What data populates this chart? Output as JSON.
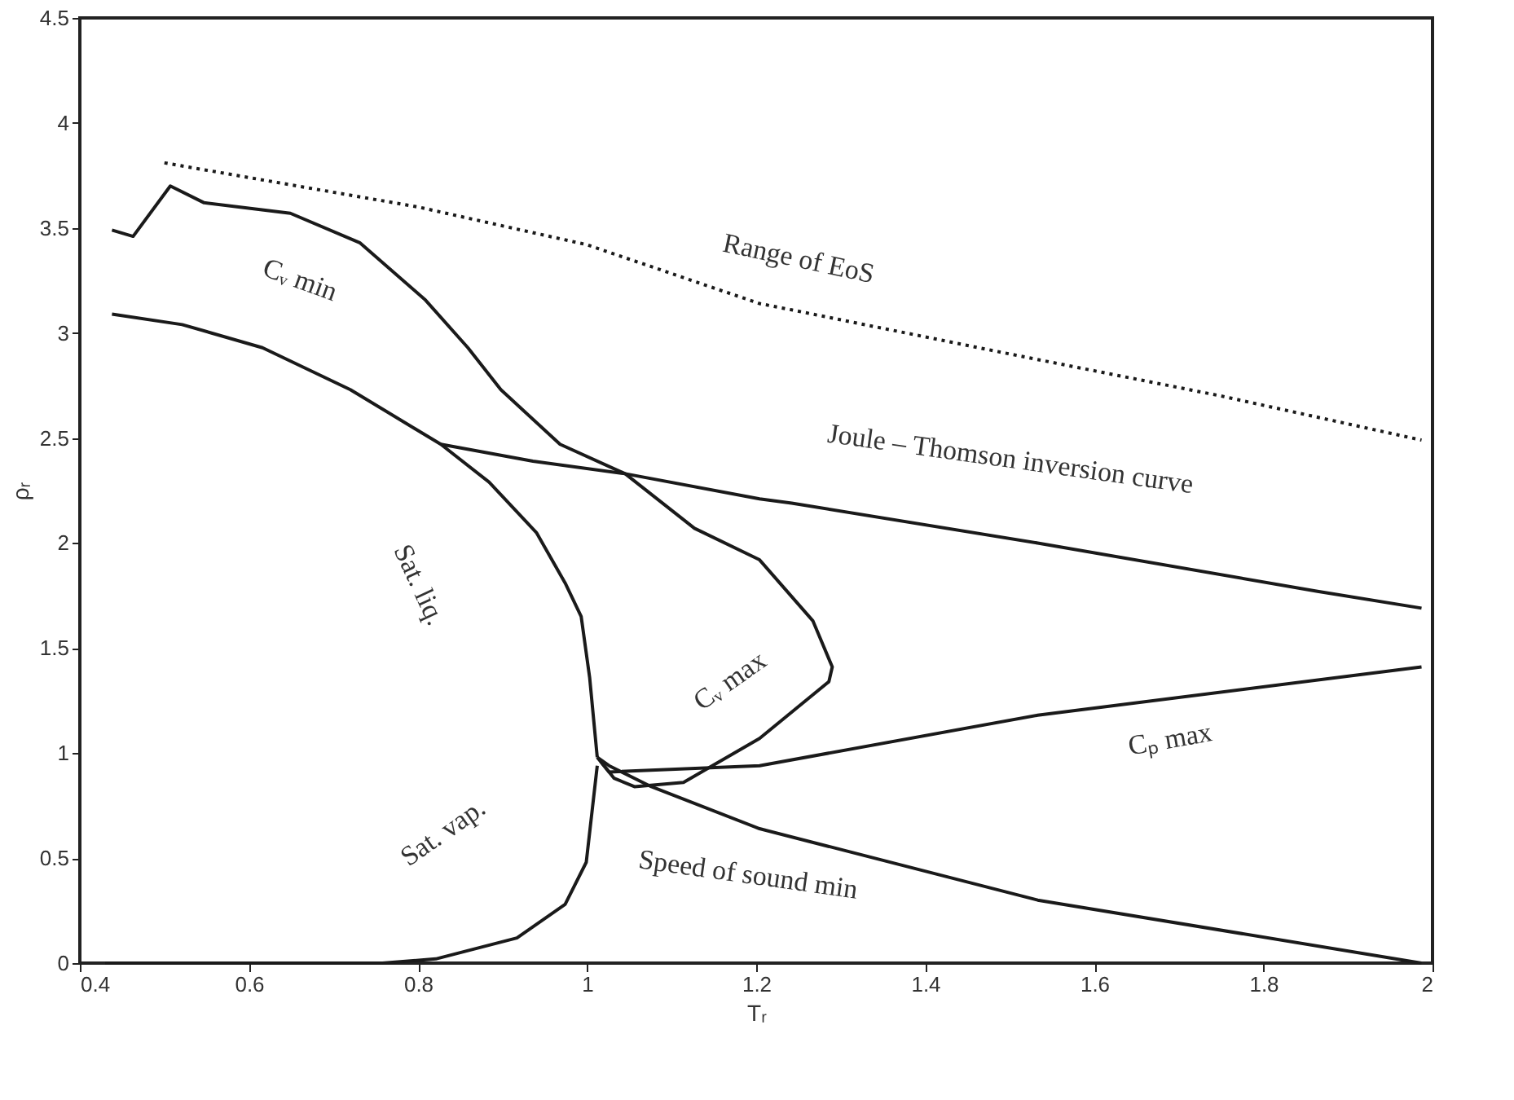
{
  "chart_data": {
    "type": "line",
    "xlabel": "Tᵣ",
    "ylabel": "ρᵣ",
    "xlim": [
      0.4,
      2
    ],
    "ylim": [
      0,
      4.5
    ],
    "xticks": [
      0.4,
      0.6,
      0.8,
      1,
      1.2,
      1.4,
      1.6,
      1.8,
      2
    ],
    "yticks": [
      0,
      0.5,
      1,
      1.5,
      2,
      2.5,
      3,
      3.5,
      4,
      4.5
    ],
    "grid": false,
    "marker": "none",
    "series": [
      {
        "color": "#1a1a1a",
        "line_style": "dotted",
        "x": [
          0.5,
          0.8,
          1.0,
          1.204,
          1.242,
          1.5,
          1.75,
          1.987
        ],
        "values": [
          3.81,
          3.6,
          3.42,
          3.14,
          3.11,
          2.9,
          2.7,
          2.49
        ]
      },
      {
        "color": "#1a1a1a",
        "line_style": "solid",
        "x": [
          0.438,
          0.463,
          0.507,
          0.547,
          0.649,
          0.731,
          0.808,
          0.859,
          0.898,
          0.968,
          1.045,
          1.127,
          1.204,
          1.267,
          1.29,
          1.286,
          1.204,
          1.114,
          1.056,
          1.032,
          1.016
        ],
        "values": [
          3.49,
          3.46,
          3.7,
          3.62,
          3.57,
          3.43,
          3.16,
          2.93,
          2.73,
          2.47,
          2.33,
          2.07,
          1.92,
          1.63,
          1.41,
          1.34,
          1.07,
          0.86,
          0.84,
          0.88,
          0.96
        ]
      },
      {
        "color": "#1a1a1a",
        "line_style": "solid",
        "x": [
          0.438,
          0.521,
          0.616,
          0.72,
          0.827,
          0.884,
          0.94,
          0.974,
          0.993,
          1.003,
          1.012
        ],
        "values": [
          3.09,
          3.04,
          2.93,
          2.73,
          2.47,
          2.29,
          2.05,
          1.81,
          1.65,
          1.36,
          0.98
        ]
      },
      {
        "color": "#1a1a1a",
        "line_style": "solid",
        "x": [
          0.827,
          0.936,
          1.045,
          1.204,
          1.242,
          1.533,
          1.864,
          1.987
        ],
        "values": [
          2.47,
          2.39,
          2.33,
          2.21,
          2.19,
          2.0,
          1.77,
          1.69
        ]
      },
      {
        "color": "#1a1a1a",
        "line_style": "solid",
        "x": [
          0.43,
          0.6,
          0.758,
          0.821,
          0.917,
          0.974,
          0.999,
          1.012
        ],
        "values": [
          0,
          0,
          0,
          0.02,
          0.12,
          0.28,
          0.48,
          0.94
        ]
      },
      {
        "color": "#1a1a1a",
        "line_style": "solid",
        "x": [
          1.012,
          1.026,
          1.204,
          1.533,
          1.987
        ],
        "values": [
          0.98,
          0.91,
          0.94,
          1.18,
          1.41
        ]
      },
      {
        "color": "#1a1a1a",
        "line_style": "solid",
        "x": [
          1.012,
          1.026,
          1.076,
          1.204,
          1.533,
          1.987
        ],
        "values": [
          0.98,
          0.94,
          0.84,
          0.64,
          0.3,
          0.0
        ]
      }
    ],
    "annotations": [
      "Range of EoS",
      "Cᵥ min",
      "Joule – Thomson inversion curve",
      "Sat. liq.",
      "Cᵥ max",
      "Cₚ max",
      "Sat. vap.",
      "Speed of sound min"
    ]
  }
}
